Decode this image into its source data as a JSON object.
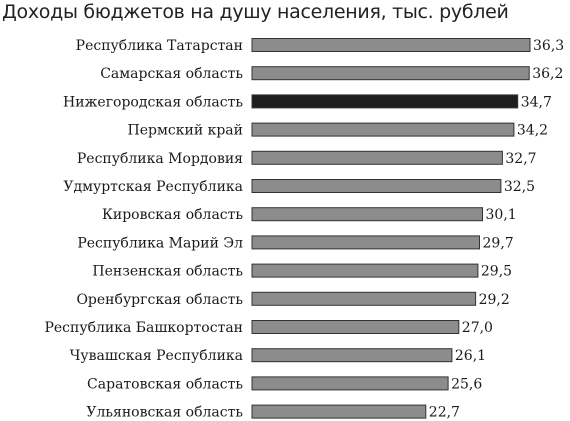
{
  "chart_data": {
    "type": "bar",
    "orientation": "horizontal",
    "title": "Доходы бюджетов на душу населения, тыс. рублей",
    "categories": [
      "Республика Татарстан",
      "Самарская область",
      "Нижегородская область",
      "Пермский край",
      "Республика Мордовия",
      "Удмуртская Республика",
      "Кировская область",
      "Республика Марий Эл",
      "Пензенская область",
      "Оренбургская область",
      "Республика Башкортостан",
      "Чувашская Республика",
      "Саратовская область",
      "Ульяновская область"
    ],
    "values": [
      36.3,
      36.2,
      34.7,
      34.2,
      32.7,
      32.5,
      30.1,
      29.7,
      29.5,
      29.2,
      27.0,
      26.1,
      25.6,
      22.7
    ],
    "value_labels": [
      "36,3",
      "36,2",
      "34,7",
      "34,2",
      "32,7",
      "32,5",
      "30,1",
      "29,7",
      "29,5",
      "29,2",
      "27,0",
      "26,1",
      "25,6",
      "22,7"
    ],
    "highlight_category": "Нижегородская область",
    "colors": {
      "bar": "#8c8c8c",
      "bar_highlight": "#1e1e1e",
      "bar_stroke": "#333333",
      "text": "#1a1a1a"
    },
    "xlabel": "",
    "ylabel": "",
    "grid": false,
    "legend": "none"
  }
}
